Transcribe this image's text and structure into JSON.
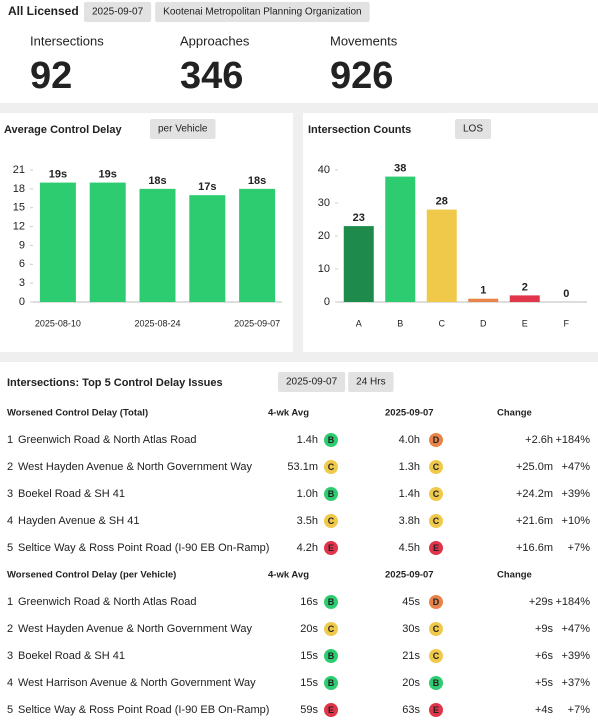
{
  "header": {
    "title": "All Licensed",
    "date": "2025-09-07",
    "organization": "Kootenai Metropolitan Planning Organization"
  },
  "kpis": [
    {
      "label": "Intersections",
      "value": 92
    },
    {
      "label": "Approaches",
      "value": 346
    },
    {
      "label": "Movements",
      "value": 926
    }
  ],
  "chart_data": [
    {
      "type": "bar",
      "title": "Average Control Delay",
      "option": "per Vehicle",
      "categories": [
        "2025-08-10",
        null,
        "2025-08-24",
        null,
        "2025-09-07"
      ],
      "values": [
        19,
        19,
        18,
        17,
        18
      ],
      "value_labels": [
        "19s",
        "19s",
        "18s",
        "17s",
        "18s"
      ],
      "color": "#2ecc71",
      "ylim": [
        0,
        21
      ],
      "yticks": [
        0,
        3,
        6,
        9,
        12,
        15,
        18,
        21
      ]
    },
    {
      "type": "bar",
      "title": "Intersection Counts",
      "option": "LOS",
      "categories": [
        "A",
        "B",
        "C",
        "D",
        "E",
        "F"
      ],
      "values": [
        23,
        38,
        28,
        1,
        2,
        0
      ],
      "colors": [
        "#1e8a4c",
        "#2ecc71",
        "#f0c94a",
        "#e8834a",
        "#e0354a",
        "#bdbdbd"
      ],
      "ylim": [
        0,
        40
      ],
      "yticks": [
        0,
        10,
        20,
        30,
        40
      ]
    }
  ],
  "issues": {
    "title": "Intersections: Top 5 Control Delay Issues",
    "date": "2025-09-07",
    "period": "24 Hrs",
    "tables": [
      {
        "columns": [
          "Worsened Control Delay (Total)",
          "4-wk Avg",
          "2025-09-07",
          "Change"
        ],
        "rows": [
          {
            "rank": 1,
            "name": "Greenwich Road & North Atlas Road",
            "avg": "1.4h",
            "avg_los": "B",
            "current": "4.0h",
            "current_los": "D",
            "change": "+2.6h",
            "percent": "+184%"
          },
          {
            "rank": 2,
            "name": "West Hayden Avenue & North Government Way",
            "avg": "53.1m",
            "avg_los": "C",
            "current": "1.3h",
            "current_los": "C",
            "change": "+25.0m",
            "percent": "+47%"
          },
          {
            "rank": 3,
            "name": "Boekel Road & SH 41",
            "avg": "1.0h",
            "avg_los": "B",
            "current": "1.4h",
            "current_los": "C",
            "change": "+24.2m",
            "percent": "+39%"
          },
          {
            "rank": 4,
            "name": "Hayden Avenue & SH 41",
            "avg": "3.5h",
            "avg_los": "C",
            "current": "3.8h",
            "current_los": "C",
            "change": "+21.6m",
            "percent": "+10%"
          },
          {
            "rank": 5,
            "name": "Seltice Way & Ross Point Road (I-90 EB On-Ramp)",
            "avg": "4.2h",
            "avg_los": "E",
            "current": "4.5h",
            "current_los": "E",
            "change": "+16.6m",
            "percent": "+7%"
          }
        ]
      },
      {
        "columns": [
          "Worsened Control Delay (per Vehicle)",
          "4-wk Avg",
          "2025-09-07",
          "Change"
        ],
        "rows": [
          {
            "rank": 1,
            "name": "Greenwich Road & North Atlas Road",
            "avg": "16s",
            "avg_los": "B",
            "current": "45s",
            "current_los": "D",
            "change": "+29s",
            "percent": "+184%"
          },
          {
            "rank": 2,
            "name": "West Hayden Avenue & North Government Way",
            "avg": "20s",
            "avg_los": "C",
            "current": "30s",
            "current_los": "C",
            "change": "+9s",
            "percent": "+47%"
          },
          {
            "rank": 3,
            "name": "Boekel Road & SH 41",
            "avg": "15s",
            "avg_los": "B",
            "current": "21s",
            "current_los": "C",
            "change": "+6s",
            "percent": "+39%"
          },
          {
            "rank": 4,
            "name": "West Harrison Avenue & North Government Way",
            "avg": "15s",
            "avg_los": "B",
            "current": "20s",
            "current_los": "B",
            "change": "+5s",
            "percent": "+37%"
          },
          {
            "rank": 5,
            "name": "Seltice Way & Ross Point Road (I-90 EB On-Ramp)",
            "avg": "59s",
            "avg_los": "E",
            "current": "63s",
            "current_los": "E",
            "change": "+4s",
            "percent": "+7%"
          }
        ]
      }
    ]
  }
}
